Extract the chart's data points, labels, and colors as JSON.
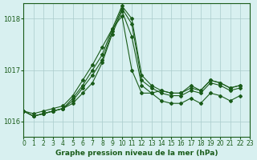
{
  "title": "Graphe pression niveau de la mer (hPa)",
  "background_color": "#d8f0f0",
  "plot_bg_color": "#d8f0f0",
  "grid_color": "#aacccc",
  "line_color": "#1a5c1a",
  "marker_color": "#1a5c1a",
  "xlim": [
    0,
    23
  ],
  "ylim": [
    1015.7,
    1018.3
  ],
  "yticks": [
    1016,
    1017,
    1018
  ],
  "xticks": [
    0,
    1,
    2,
    3,
    4,
    5,
    6,
    7,
    8,
    9,
    10,
    11,
    12,
    13,
    14,
    15,
    16,
    17,
    18,
    19,
    20,
    21,
    22,
    23
  ],
  "series": [
    [
      1016.2,
      1016.15,
      1016.2,
      1016.25,
      1016.3,
      1016.5,
      1016.8,
      1017.1,
      1017.45,
      1017.8,
      1018.05,
      1017.0,
      1016.55,
      1016.55,
      1016.6,
      1016.55,
      1016.55,
      1016.7,
      1016.6,
      1016.8,
      1016.75,
      1016.65,
      1016.7
    ],
    [
      1016.2,
      1016.1,
      1016.15,
      1016.2,
      1016.25,
      1016.35,
      1016.55,
      1016.75,
      1017.15,
      1017.7,
      1018.15,
      1017.65,
      1016.7,
      1016.55,
      1016.4,
      1016.35,
      1016.35,
      1016.45,
      1016.35,
      1016.55,
      1016.5,
      1016.4,
      1016.5
    ],
    [
      1016.2,
      1016.1,
      1016.15,
      1016.2,
      1016.25,
      1016.4,
      1016.65,
      1016.9,
      1017.2,
      1017.75,
      1018.2,
      1017.9,
      1016.8,
      1016.65,
      1016.55,
      1016.5,
      1016.5,
      1016.6,
      1016.55,
      1016.75,
      1016.7,
      1016.6,
      1016.65
    ],
    [
      1016.2,
      1016.1,
      1016.15,
      1016.2,
      1016.25,
      1016.45,
      1016.7,
      1017.0,
      1017.3,
      1017.8,
      1018.25,
      1018.0,
      1016.9,
      1016.7,
      1016.6,
      1016.55,
      1016.55,
      1016.65,
      1016.6,
      1016.8,
      1016.75,
      1016.65,
      1016.7
    ]
  ]
}
